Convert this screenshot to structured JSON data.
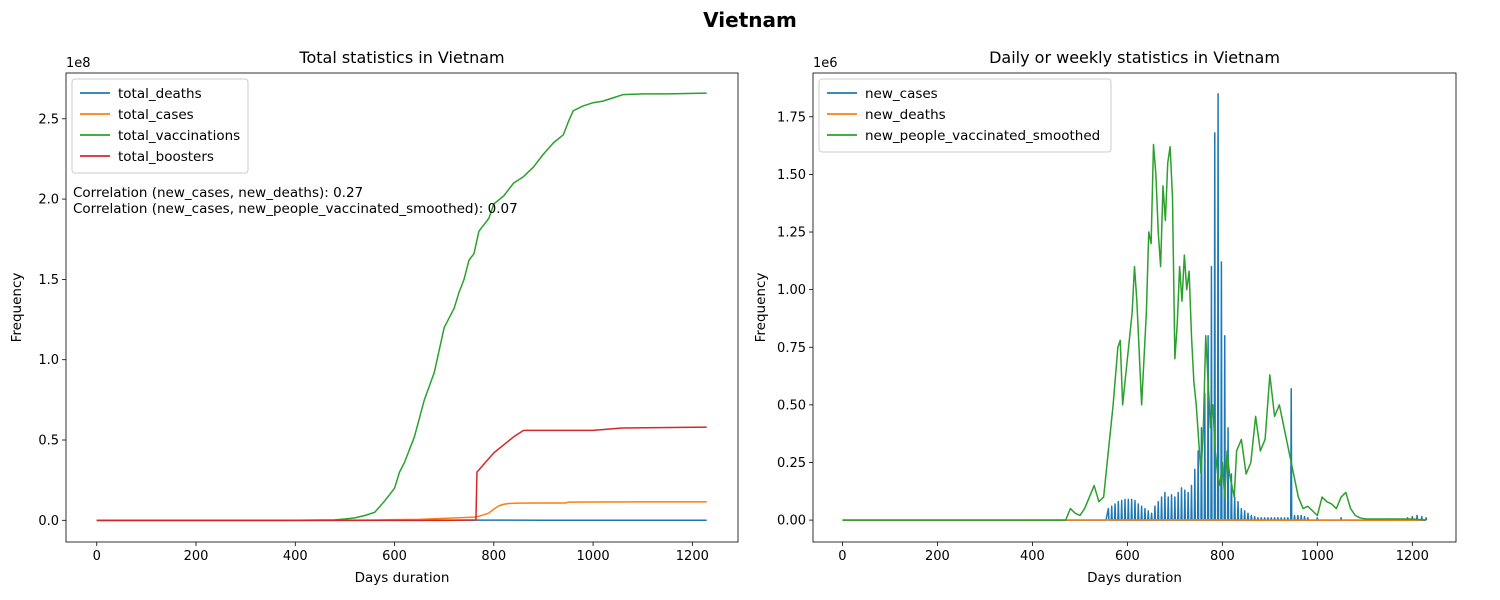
{
  "suptitle": "Vietnam",
  "chart_data": [
    {
      "type": "line",
      "title": "Total statistics in Vietnam",
      "xlabel": "Days duration",
      "ylabel": "Frequency",
      "y_offset_label": "1e8",
      "xlim": [
        -62,
        1292
      ],
      "ylim": [
        -0.135,
        2.785
      ],
      "x_ticks": [
        0,
        200,
        400,
        600,
        800,
        1000,
        1200
      ],
      "x_tick_labels": [
        "0",
        "200",
        "400",
        "600",
        "800",
        "1000",
        "1200"
      ],
      "y_ticks": [
        0,
        0.5,
        1.0,
        1.5,
        2.0,
        2.5
      ],
      "y_tick_labels": [
        "0.0",
        "0.5",
        "1.0",
        "1.5",
        "2.0",
        "2.5"
      ],
      "grid": false,
      "legend_position": "upper-left",
      "annotations": [
        "Correlation (new_cases, new_deaths): 0.27",
        "Correlation (new_cases, new_people_vaccinated_smoothed): 0.07"
      ],
      "series": [
        {
          "name": "total_deaths",
          "color": "#1f77b4",
          "x": [
            0,
            400,
            560,
            600,
            650,
            700,
            760,
            800,
            900,
            1229
          ],
          "y": [
            0,
            0,
            0.0001,
            0.0003,
            0.0006,
            0.001,
            0.0013,
            0.0014,
            0.00043,
            0.00043
          ]
        },
        {
          "name": "total_cases",
          "color": "#ff7f0e",
          "x": [
            0,
            400,
            560,
            600,
            650,
            700,
            760,
            770,
            790,
            800,
            810,
            820,
            830,
            850,
            900,
            945,
            950,
            1000,
            1100,
            1229
          ],
          "y": [
            0,
            0,
            0.002,
            0.004,
            0.006,
            0.012,
            0.02,
            0.025,
            0.045,
            0.07,
            0.09,
            0.1,
            0.105,
            0.107,
            0.108,
            0.108,
            0.113,
            0.114,
            0.115,
            0.115
          ]
        },
        {
          "name": "total_vaccinations",
          "color": "#2ca02c",
          "x": [
            0,
            380,
            480,
            500,
            520,
            540,
            560,
            580,
            600,
            610,
            620,
            640,
            660,
            680,
            700,
            720,
            730,
            740,
            750,
            760,
            770,
            780,
            790,
            800,
            820,
            840,
            860,
            880,
            900,
            920,
            940,
            950,
            960,
            980,
            1000,
            1020,
            1040,
            1060,
            1100,
            1150,
            1229
          ],
          "y": [
            0,
            0,
            0.003,
            0.008,
            0.015,
            0.03,
            0.05,
            0.12,
            0.2,
            0.3,
            0.36,
            0.52,
            0.75,
            0.92,
            1.2,
            1.32,
            1.42,
            1.5,
            1.62,
            1.66,
            1.8,
            1.84,
            1.88,
            1.97,
            2.02,
            2.1,
            2.14,
            2.2,
            2.28,
            2.35,
            2.4,
            2.48,
            2.55,
            2.58,
            2.6,
            2.61,
            2.63,
            2.65,
            2.655,
            2.655,
            2.66
          ]
        },
        {
          "name": "total_boosters",
          "color": "#d62728",
          "x": [
            0,
            700,
            764,
            766,
            780,
            800,
            820,
            840,
            860,
            880,
            900,
            1000,
            1040,
            1060,
            1229
          ],
          "y": [
            0,
            0,
            0.002,
            0.3,
            0.35,
            0.42,
            0.47,
            0.52,
            0.56,
            0.56,
            0.56,
            0.56,
            0.57,
            0.575,
            0.58
          ]
        }
      ]
    },
    {
      "type": "line",
      "title": "Daily or weekly statistics in Vietnam",
      "xlabel": "Days duration",
      "ylabel": "Frequency",
      "y_offset_label": "1e6",
      "xlim": [
        -62,
        1292
      ],
      "ylim": [
        -0.095,
        1.94
      ],
      "x_ticks": [
        0,
        200,
        400,
        600,
        800,
        1000,
        1200
      ],
      "x_tick_labels": [
        "0",
        "200",
        "400",
        "600",
        "800",
        "1000",
        "1200"
      ],
      "y_ticks": [
        0,
        0.25,
        0.5,
        0.75,
        1.0,
        1.25,
        1.5,
        1.75
      ],
      "y_tick_labels": [
        "0.00",
        "0.25",
        "0.50",
        "0.75",
        "1.00",
        "1.25",
        "1.50",
        "1.75"
      ],
      "grid": false,
      "legend_position": "upper-left",
      "series": [
        {
          "name": "new_cases",
          "color": "#1f77b4",
          "style": "weekly-spikes",
          "x": [
            560,
            567,
            574,
            581,
            588,
            595,
            602,
            609,
            616,
            623,
            630,
            637,
            644,
            651,
            658,
            665,
            672,
            679,
            686,
            693,
            700,
            707,
            714,
            721,
            728,
            735,
            742,
            749,
            756,
            763,
            770,
            777,
            784,
            791,
            798,
            805,
            812,
            819,
            826,
            833,
            840,
            847,
            854,
            861,
            868,
            875,
            882,
            889,
            896,
            903,
            910,
            917,
            924,
            931,
            938,
            945,
            952,
            959,
            966,
            973,
            980,
            1000,
            1050,
            1100,
            1150,
            1190,
            1200,
            1210,
            1220,
            1229
          ],
          "y": [
            0.05,
            0.06,
            0.07,
            0.08,
            0.085,
            0.09,
            0.09,
            0.09,
            0.085,
            0.07,
            0.06,
            0.05,
            0.04,
            0.03,
            0.06,
            0.08,
            0.1,
            0.12,
            0.1,
            0.11,
            0.1,
            0.12,
            0.14,
            0.13,
            0.12,
            0.15,
            0.22,
            0.3,
            0.4,
            0.55,
            0.8,
            1.1,
            1.68,
            1.85,
            1.12,
            0.8,
            0.4,
            0.2,
            0.1,
            0.08,
            0.05,
            0.04,
            0.03,
            0.02,
            0.015,
            0.01,
            0.01,
            0.01,
            0.01,
            0.01,
            0.01,
            0.01,
            0.01,
            0.01,
            0.01,
            0.57,
            0.02,
            0.02,
            0.02,
            0.015,
            0.01,
            0.01,
            0.01,
            0.005,
            0.005,
            0.01,
            0.015,
            0.02,
            0.015,
            0.01
          ]
        },
        {
          "name": "new_deaths",
          "color": "#ff7f0e",
          "x": [
            0,
            560,
            700,
            760,
            800,
            850,
            1229
          ],
          "y": [
            0,
            0.0002,
            0.0008,
            0.0006,
            0.0004,
            0.0001,
            0
          ]
        },
        {
          "name": "new_people_vaccinated_smoothed",
          "color": "#2ca02c",
          "x": [
            0,
            470,
            480,
            490,
            500,
            510,
            520,
            530,
            540,
            550,
            560,
            570,
            580,
            585,
            590,
            600,
            610,
            615,
            620,
            630,
            640,
            645,
            650,
            655,
            660,
            665,
            670,
            675,
            680,
            685,
            690,
            695,
            700,
            705,
            710,
            715,
            720,
            725,
            730,
            735,
            740,
            745,
            750,
            755,
            760,
            765,
            770,
            775,
            780,
            785,
            790,
            795,
            800,
            805,
            810,
            815,
            820,
            825,
            830,
            840,
            850,
            860,
            870,
            880,
            890,
            900,
            910,
            920,
            930,
            940,
            950,
            960,
            970,
            980,
            990,
            1000,
            1010,
            1020,
            1030,
            1040,
            1050,
            1060,
            1070,
            1080,
            1090,
            1100,
            1150,
            1200,
            1229
          ],
          "y": [
            0,
            0,
            0.05,
            0.03,
            0.02,
            0.05,
            0.1,
            0.15,
            0.08,
            0.1,
            0.3,
            0.5,
            0.75,
            0.78,
            0.5,
            0.7,
            0.9,
            1.1,
            0.95,
            0.5,
            0.9,
            1.25,
            1.2,
            1.63,
            1.5,
            1.25,
            1.1,
            1.45,
            1.3,
            1.55,
            1.62,
            1.4,
            0.7,
            0.85,
            1.1,
            0.95,
            1.15,
            1.0,
            1.08,
            0.8,
            0.6,
            0.5,
            0.35,
            0.2,
            0.4,
            0.8,
            0.6,
            0.4,
            0.5,
            0.3,
            0.2,
            0.15,
            0.25,
            0.1,
            0.3,
            0.2,
            0.15,
            0.1,
            0.3,
            0.35,
            0.2,
            0.25,
            0.45,
            0.3,
            0.35,
            0.63,
            0.45,
            0.5,
            0.4,
            0.3,
            0.2,
            0.1,
            0.05,
            0.06,
            0.04,
            0.02,
            0.1,
            0.08,
            0.07,
            0.05,
            0.1,
            0.12,
            0.05,
            0.02,
            0.01,
            0.005,
            0.005,
            0.005,
            0
          ]
        }
      ]
    }
  ]
}
